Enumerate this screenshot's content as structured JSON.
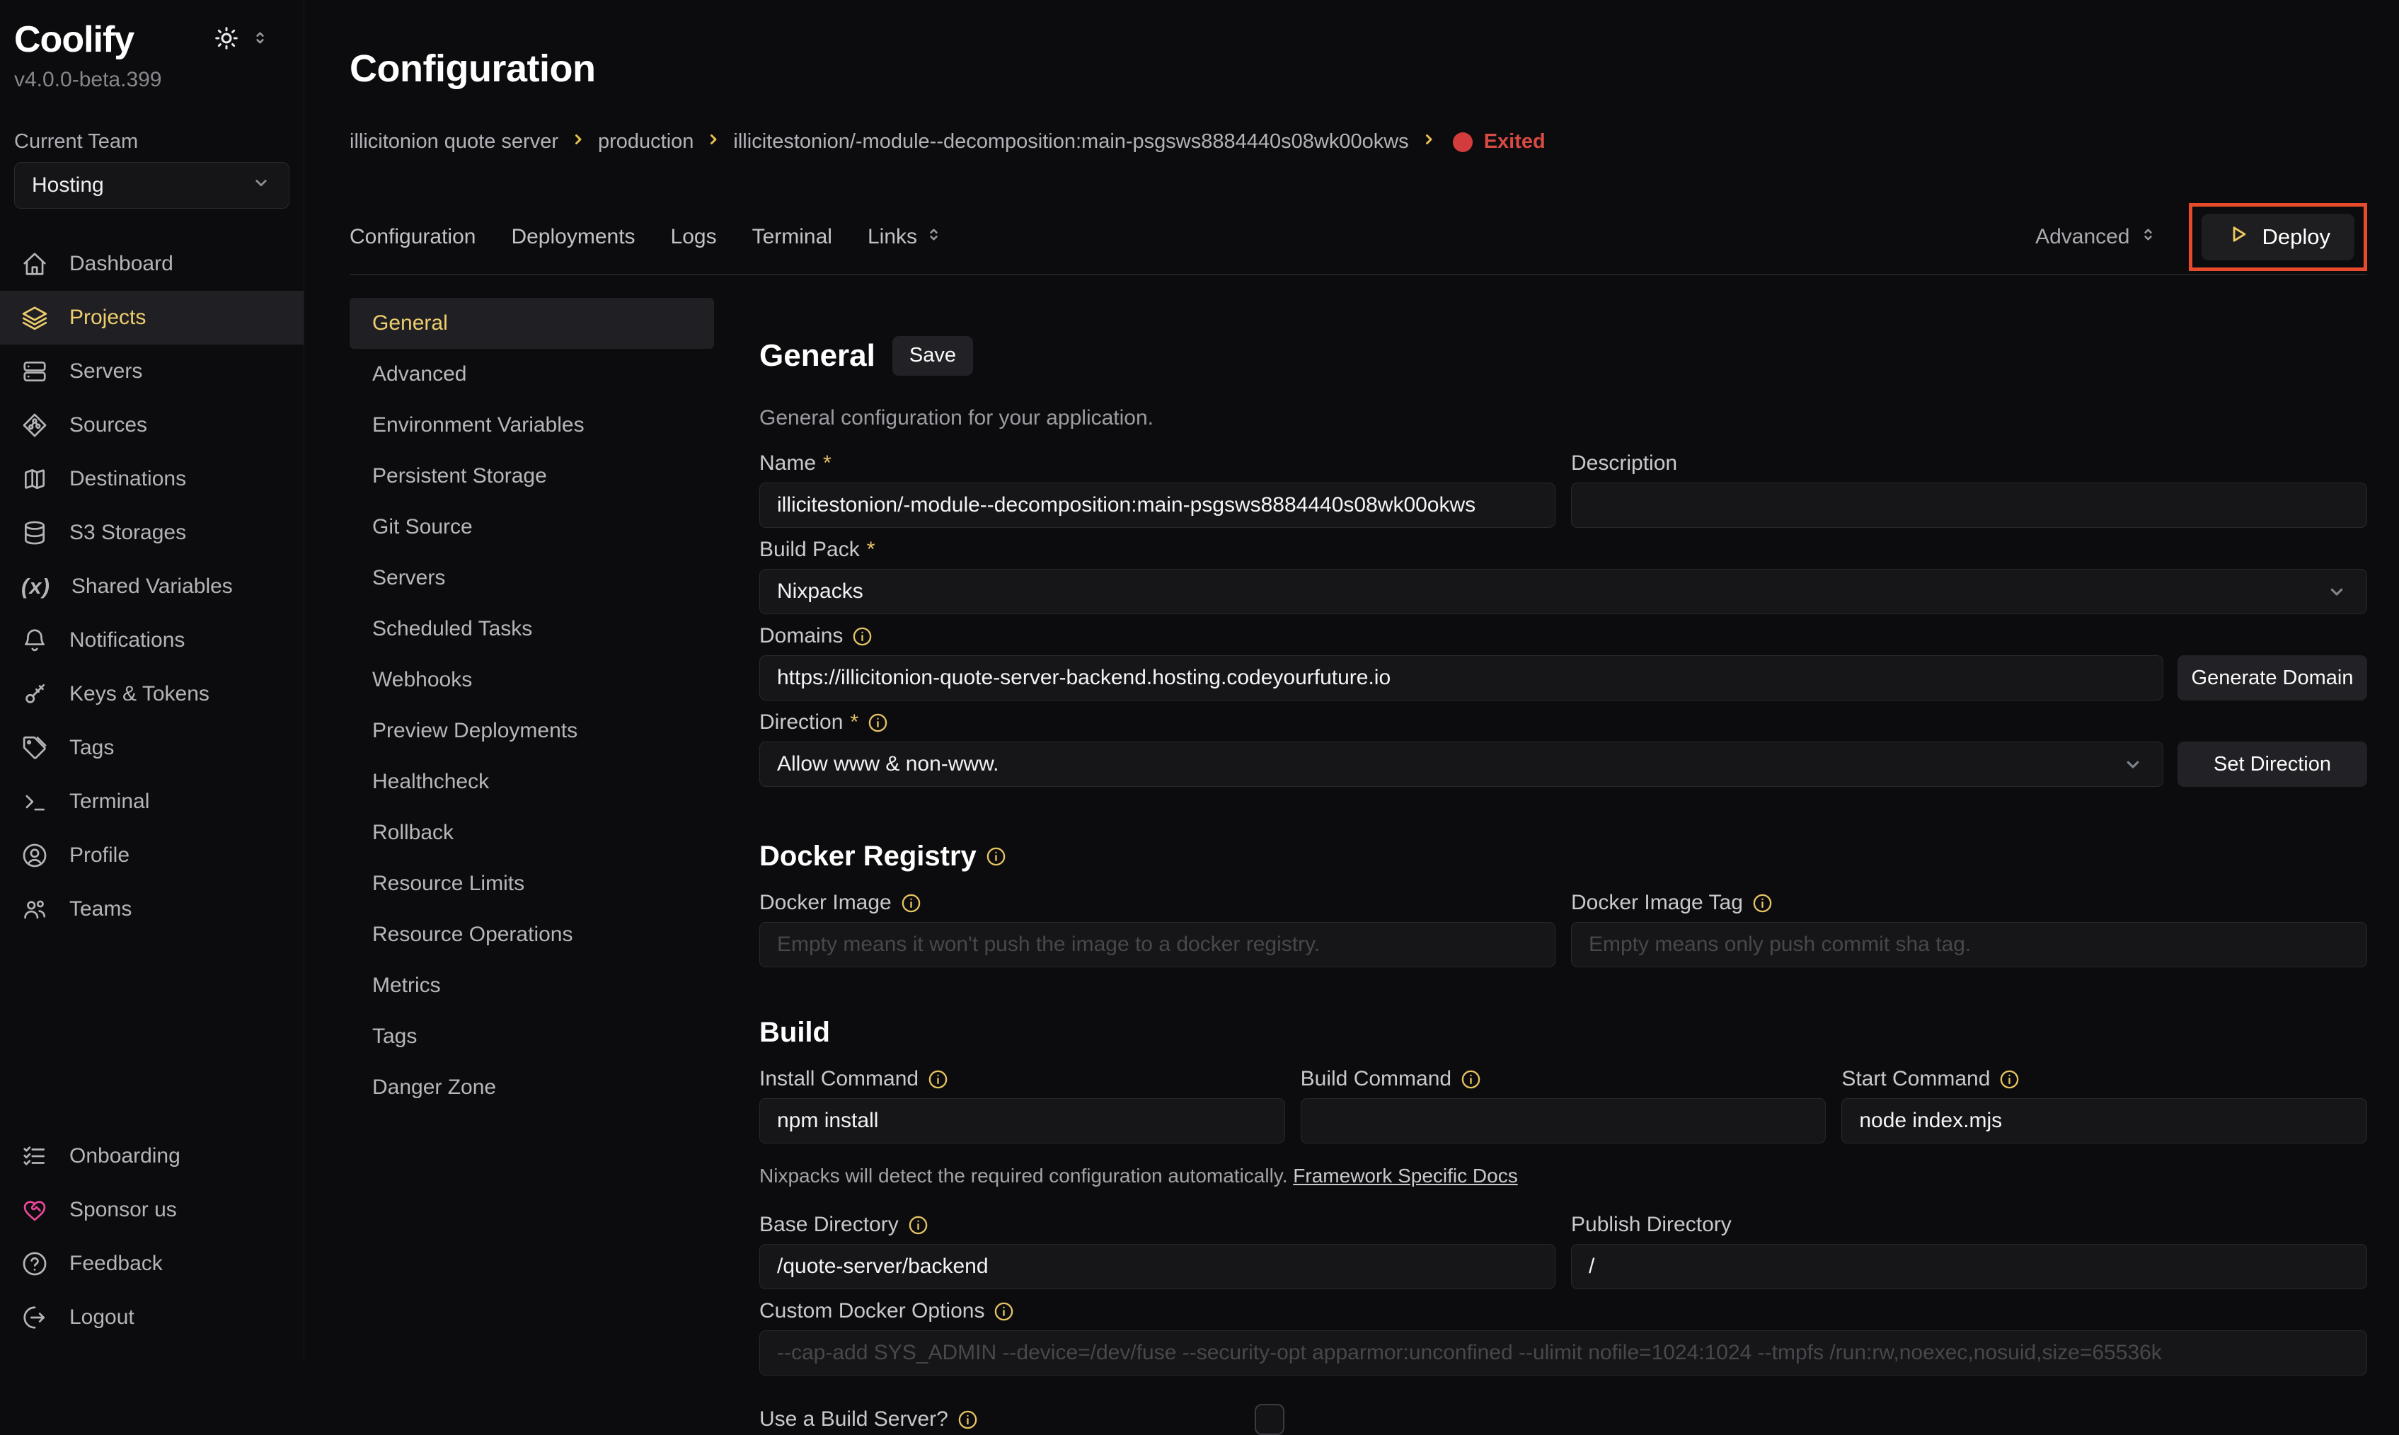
{
  "misc": {
    "required_mark": "*"
  },
  "colors": {
    "accent_yellow": "#efce6e",
    "status_red": "#d94a44",
    "annotation_red": "#e84b2c",
    "sponsor_pink": "#ec4899",
    "background": "#0c0c0e"
  },
  "sidebar": {
    "logo": "Coolify",
    "version": "v4.0.0-beta.399",
    "team_label": "Current Team",
    "team_selected": "Hosting",
    "items": [
      {
        "label": "Dashboard",
        "icon": "home-icon"
      },
      {
        "label": "Projects",
        "icon": "layers-icon",
        "active": true
      },
      {
        "label": "Servers",
        "icon": "server-icon"
      },
      {
        "label": "Sources",
        "icon": "git-icon"
      },
      {
        "label": "Destinations",
        "icon": "map-icon"
      },
      {
        "label": "S3 Storages",
        "icon": "database-icon"
      },
      {
        "label": "Shared Variables",
        "icon": "variable-icon"
      },
      {
        "label": "Notifications",
        "icon": "bell-icon"
      },
      {
        "label": "Keys & Tokens",
        "icon": "key-icon"
      },
      {
        "label": "Tags",
        "icon": "tag-icon"
      },
      {
        "label": "Terminal",
        "icon": "terminal-icon"
      },
      {
        "label": "Profile",
        "icon": "user-icon"
      },
      {
        "label": "Teams",
        "icon": "users-icon"
      }
    ],
    "footer_items": [
      {
        "label": "Onboarding",
        "icon": "checklist-icon"
      },
      {
        "label": "Sponsor us",
        "icon": "heart-icon",
        "pink": true
      },
      {
        "label": "Feedback",
        "icon": "help-icon"
      },
      {
        "label": "Logout",
        "icon": "logout-icon"
      }
    ]
  },
  "header": {
    "title": "Configuration",
    "breadcrumb": [
      "illicitonion quote server",
      "production",
      "illicitestonion/-module--decomposition:main-psgsws8884440s08wk00okws"
    ],
    "status": "Exited"
  },
  "tabs": {
    "items": [
      {
        "label": "Configuration"
      },
      {
        "label": "Deployments"
      },
      {
        "label": "Logs"
      },
      {
        "label": "Terminal"
      },
      {
        "label": "Links",
        "chevron": true
      }
    ],
    "advanced": "Advanced",
    "deploy": "Deploy"
  },
  "subnav": {
    "active": "General",
    "items": [
      "General",
      "Advanced",
      "Environment Variables",
      "Persistent Storage",
      "Git Source",
      "Servers",
      "Scheduled Tasks",
      "Webhooks",
      "Preview Deployments",
      "Healthcheck",
      "Rollback",
      "Resource Limits",
      "Resource Operations",
      "Metrics",
      "Tags",
      "Danger Zone"
    ]
  },
  "general": {
    "heading": "General",
    "save": "Save",
    "subtitle": "General configuration for your application.",
    "name_label": "Name",
    "name_value": "illicitestonion/-module--decomposition:main-psgsws8884440s08wk00okws",
    "description_label": "Description",
    "description_value": "",
    "build_pack_label": "Build Pack",
    "build_pack_value": "Nixpacks",
    "domains_label": "Domains",
    "domains_value": "https://illicitonion-quote-server-backend.hosting.codeyourfuture.io",
    "generate_domain": "Generate Domain",
    "direction_label": "Direction",
    "direction_value": "Allow www & non-www.",
    "set_direction": "Set Direction"
  },
  "docker_registry": {
    "heading": "Docker Registry",
    "image_label": "Docker Image",
    "image_placeholder": "Empty means it won't push the image to a docker registry.",
    "tag_label": "Docker Image Tag",
    "tag_placeholder": "Empty means only push commit sha tag."
  },
  "build": {
    "heading": "Build",
    "install_label": "Install Command",
    "install_value": "npm install",
    "build_label": "Build Command",
    "build_value": "",
    "start_label": "Start Command",
    "start_value": "node index.mjs",
    "note": "Nixpacks will detect the required configuration automatically.",
    "note_link": "Framework Specific Docs",
    "base_dir_label": "Base Directory",
    "base_dir_value": "/quote-server/backend",
    "publish_dir_label": "Publish Directory",
    "publish_dir_value": "/",
    "docker_options_label": "Custom Docker Options",
    "docker_options_placeholder": "--cap-add SYS_ADMIN --device=/dev/fuse --security-opt apparmor:unconfined --ulimit nofile=1024:1024 --tmpfs /run:rw,noexec,nosuid,size=65536k",
    "build_server_label": "Use a Build Server?"
  }
}
